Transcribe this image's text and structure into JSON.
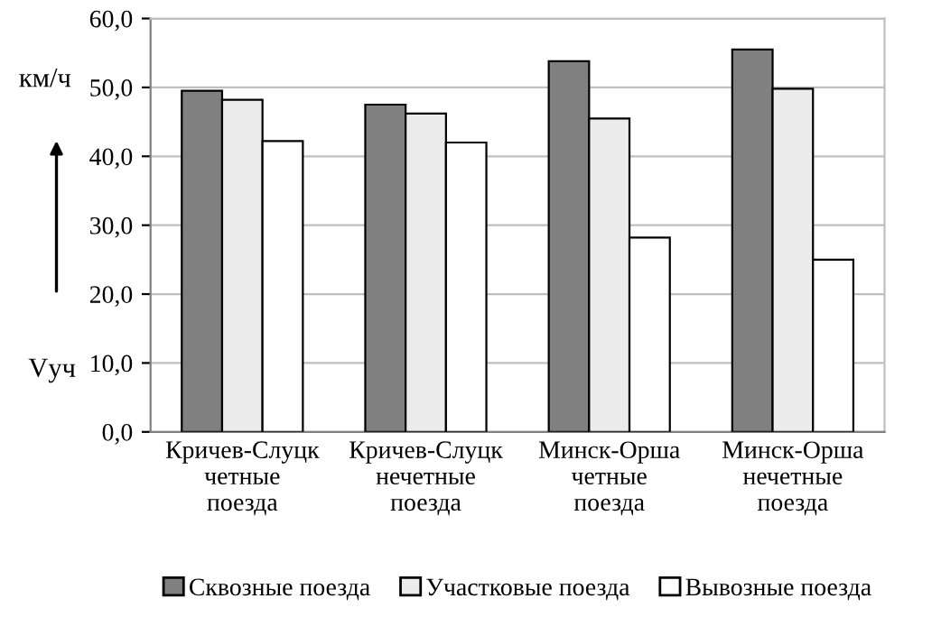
{
  "chart_data": {
    "type": "bar",
    "categories": [
      "Кричев-Слуцк\nчетные\nпоезда",
      "Кричев-Слуцк\nнечетные\nпоезда",
      "Минск-Орша\nчетные\nпоезда",
      "Минск-Орша\nнечетные\nпоезда"
    ],
    "series": [
      {
        "name": "Сквозные поезда",
        "color": "#808080",
        "values": [
          49.5,
          47.5,
          53.8,
          55.5
        ]
      },
      {
        "name": "Участковые поезда",
        "color": "#ececec",
        "values": [
          48.2,
          46.2,
          45.5,
          49.8
        ]
      },
      {
        "name": "Вывозные поезда",
        "color": "#ffffff",
        "values": [
          42.2,
          42.0,
          28.2,
          25.0
        ]
      }
    ],
    "ylabel": "Vуч",
    "annotations": [
      "км/ч"
    ],
    "ylim": [
      0,
      60
    ],
    "yticks": [
      {
        "value": 0,
        "label": "0,0"
      },
      {
        "value": 10,
        "label": "10,0"
      },
      {
        "value": 20,
        "label": "20,0"
      },
      {
        "value": 30,
        "label": "30,0"
      },
      {
        "value": 40,
        "label": "40,0"
      },
      {
        "value": 50,
        "label": "50,0"
      },
      {
        "value": 60,
        "label": "60,0"
      }
    ],
    "grid": "y",
    "legend": "bottom"
  }
}
